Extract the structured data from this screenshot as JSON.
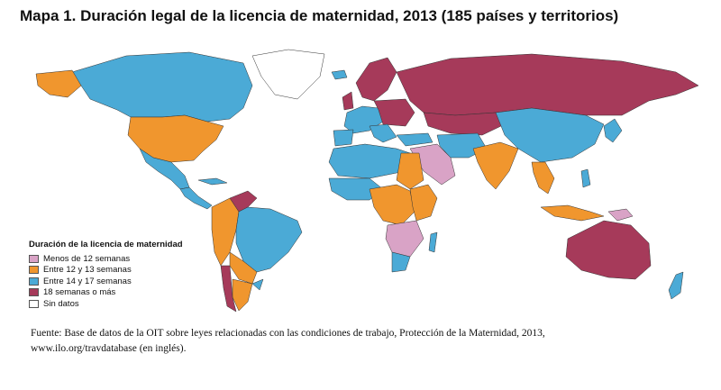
{
  "title": "Mapa 1.  Duración legal de la licencia de maternidad, 2013 (185 países y territorios)",
  "legend": {
    "title": "Duración de la licencia de maternidad",
    "items": [
      {
        "label": "Menos de 12 semanas",
        "color": "#d9a3c6"
      },
      {
        "label": "Entre 12 y 13 semanas",
        "color": "#f0962e"
      },
      {
        "label": "Entre 14 y 17 semanas",
        "color": "#4baad6"
      },
      {
        "label": "18 semanas o más",
        "color": "#a63a5a"
      },
      {
        "label": "Sin datos",
        "color": "#ffffff"
      }
    ]
  },
  "source": {
    "line1": "Fuente: Base de datos de la OIT sobre leyes relacionadas con las condiciones de trabajo, Protección de la Maternidad, 2013,",
    "line2": "www.ilo.org/travdatabase (en inglés)."
  },
  "colors": {
    "lt12": "#d9a3c6",
    "w12_13": "#f0962e",
    "w14_17": "#4baad6",
    "w18plus": "#a63a5a",
    "nodata": "#ffffff",
    "border": "#333333"
  }
}
